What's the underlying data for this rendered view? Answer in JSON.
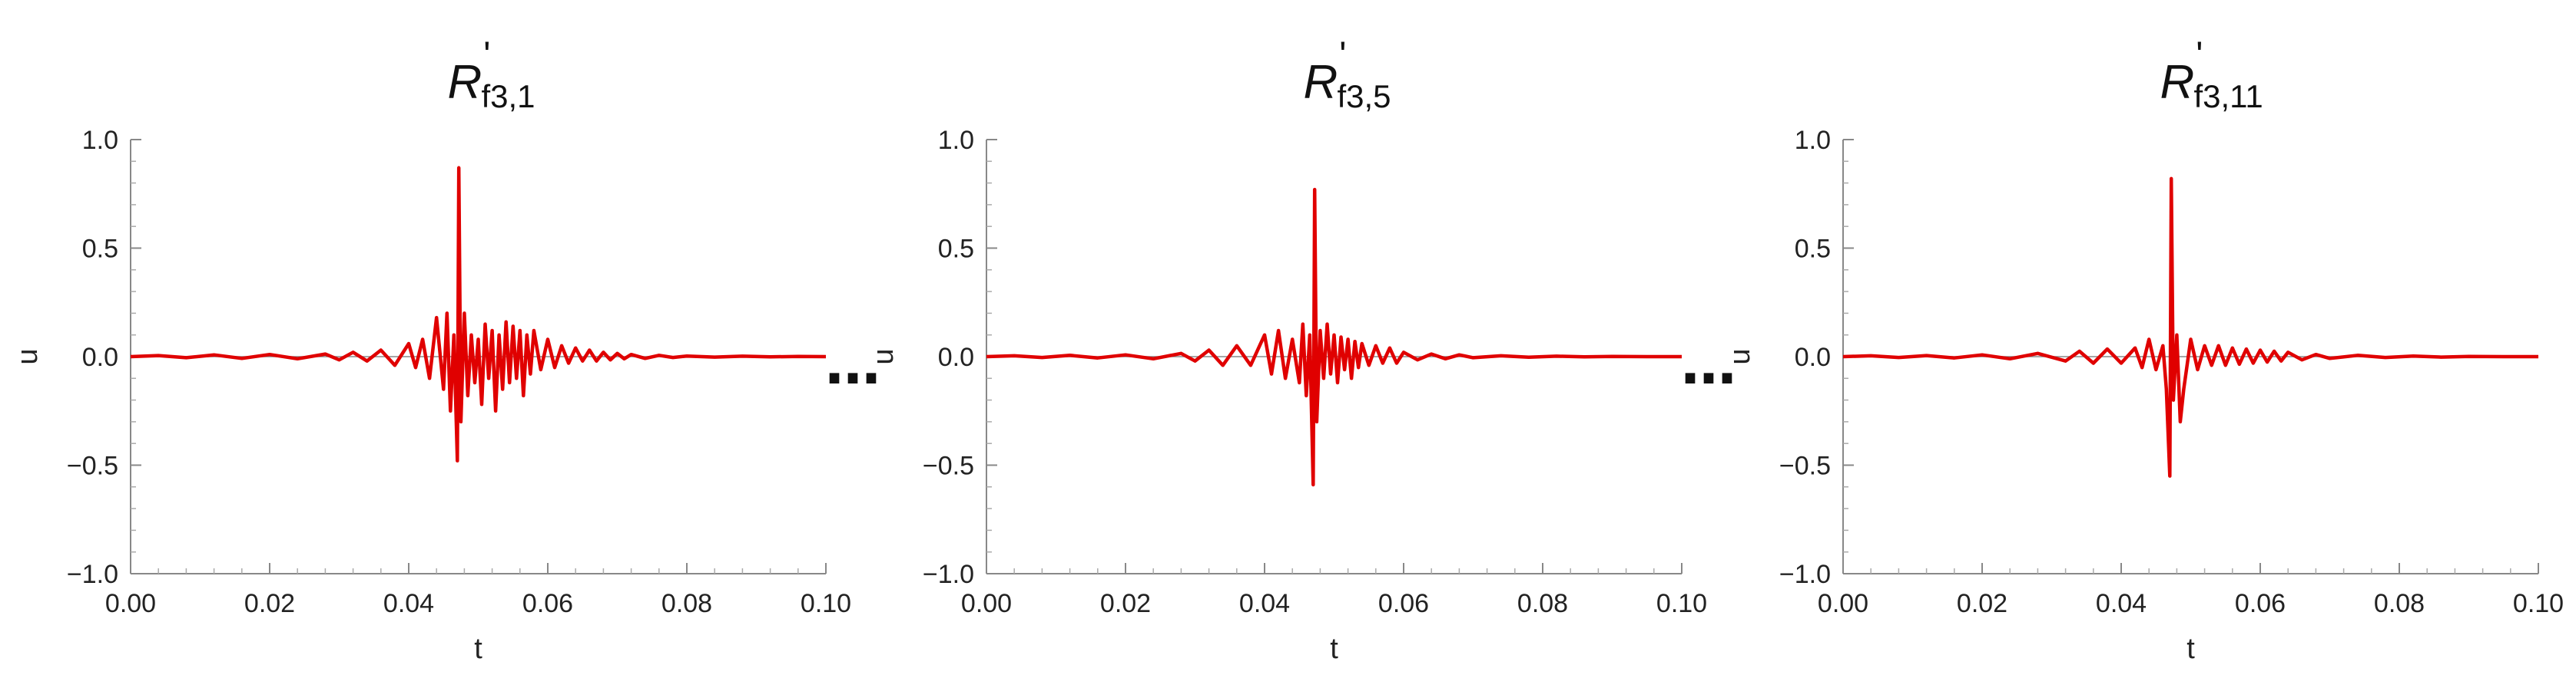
{
  "chart_data": [
    {
      "type": "line",
      "title_base": "R",
      "title_prime": "'",
      "title_sub": "f3,1",
      "xlabel": "t",
      "ylabel": "u",
      "xlim": [
        0.0,
        0.1
      ],
      "ylim": [
        -1.0,
        1.0
      ],
      "xticks": [
        "0.00",
        "0.02",
        "0.04",
        "0.06",
        "0.08",
        "0.10"
      ],
      "yticks": [
        "−1.0",
        "−0.5",
        "0.0",
        "0.5",
        "1.0"
      ],
      "grid": false,
      "series": [
        {
          "color": "#e00000",
          "x": [
            0.0,
            0.004,
            0.008,
            0.012,
            0.016,
            0.02,
            0.024,
            0.028,
            0.03,
            0.032,
            0.034,
            0.036,
            0.038,
            0.04,
            0.041,
            0.042,
            0.043,
            0.044,
            0.045,
            0.0455,
            0.046,
            0.0465,
            0.047,
            0.0472,
            0.0475,
            0.048,
            0.0485,
            0.049,
            0.0495,
            0.05,
            0.0505,
            0.051,
            0.0515,
            0.052,
            0.0525,
            0.053,
            0.0535,
            0.054,
            0.0545,
            0.055,
            0.0555,
            0.056,
            0.0565,
            0.057,
            0.0575,
            0.058,
            0.059,
            0.06,
            0.061,
            0.062,
            0.063,
            0.064,
            0.065,
            0.066,
            0.067,
            0.068,
            0.069,
            0.07,
            0.071,
            0.072,
            0.074,
            0.076,
            0.078,
            0.08,
            0.084,
            0.088,
            0.092,
            0.096,
            0.1
          ],
          "y": [
            0.0,
            0.005,
            -0.005,
            0.008,
            -0.008,
            0.01,
            -0.01,
            0.012,
            -0.015,
            0.02,
            -0.02,
            0.03,
            -0.04,
            0.06,
            -0.05,
            0.08,
            -0.1,
            0.18,
            -0.15,
            0.2,
            -0.25,
            0.1,
            -0.48,
            0.87,
            -0.3,
            0.2,
            -0.18,
            0.1,
            -0.12,
            0.08,
            -0.22,
            0.15,
            -0.1,
            0.12,
            -0.25,
            0.1,
            -0.15,
            0.16,
            -0.12,
            0.14,
            -0.1,
            0.12,
            -0.18,
            0.1,
            -0.08,
            0.12,
            -0.06,
            0.08,
            -0.05,
            0.05,
            -0.03,
            0.04,
            -0.02,
            0.03,
            -0.02,
            0.02,
            -0.015,
            0.015,
            -0.01,
            0.01,
            -0.008,
            0.006,
            -0.004,
            0.003,
            -0.002,
            0.002,
            -0.001,
            0.001,
            0.0
          ]
        }
      ]
    },
    {
      "type": "line",
      "title_base": "R",
      "title_prime": "'",
      "title_sub": "f3,5",
      "xlabel": "t",
      "ylabel": "u",
      "xlim": [
        0.0,
        0.1
      ],
      "ylim": [
        -1.0,
        1.0
      ],
      "xticks": [
        "0.00",
        "0.02",
        "0.04",
        "0.06",
        "0.08",
        "0.10"
      ],
      "yticks": [
        "−1.0",
        "−0.5",
        "0.0",
        "0.5",
        "1.0"
      ],
      "grid": false,
      "series": [
        {
          "color": "#e00000",
          "x": [
            0.0,
            0.004,
            0.008,
            0.012,
            0.016,
            0.02,
            0.024,
            0.028,
            0.03,
            0.032,
            0.034,
            0.036,
            0.038,
            0.04,
            0.041,
            0.042,
            0.043,
            0.044,
            0.045,
            0.0455,
            0.046,
            0.0465,
            0.047,
            0.0472,
            0.0475,
            0.048,
            0.0485,
            0.049,
            0.0495,
            0.05,
            0.0505,
            0.051,
            0.0515,
            0.052,
            0.0525,
            0.053,
            0.0535,
            0.054,
            0.055,
            0.056,
            0.057,
            0.058,
            0.059,
            0.06,
            0.062,
            0.064,
            0.066,
            0.068,
            0.07,
            0.074,
            0.078,
            0.082,
            0.086,
            0.09,
            0.095,
            0.1
          ],
          "y": [
            0.0,
            0.004,
            -0.004,
            0.006,
            -0.006,
            0.008,
            -0.01,
            0.015,
            -0.02,
            0.03,
            -0.04,
            0.05,
            -0.04,
            0.1,
            -0.08,
            0.12,
            -0.1,
            0.08,
            -0.12,
            0.15,
            -0.18,
            0.1,
            -0.59,
            0.77,
            -0.3,
            0.12,
            -0.1,
            0.15,
            -0.08,
            0.1,
            -0.12,
            0.09,
            -0.06,
            0.08,
            -0.1,
            0.07,
            -0.05,
            0.06,
            -0.04,
            0.05,
            -0.03,
            0.04,
            -0.03,
            0.02,
            -0.015,
            0.012,
            -0.01,
            0.008,
            -0.005,
            0.004,
            -0.003,
            0.002,
            -0.001,
            0.001,
            0.0,
            0.0
          ]
        }
      ]
    },
    {
      "type": "line",
      "title_base": "R",
      "title_prime": "'",
      "title_sub": "f3,11",
      "xlabel": "t",
      "ylabel": "u",
      "xlim": [
        0.0,
        0.1
      ],
      "ylim": [
        -1.0,
        1.0
      ],
      "xticks": [
        "0.00",
        "0.02",
        "0.04",
        "0.06",
        "0.08",
        "0.10"
      ],
      "yticks": [
        "−1.0",
        "−0.5",
        "0.0",
        "0.5",
        "1.0"
      ],
      "grid": false,
      "series": [
        {
          "color": "#e00000",
          "x": [
            0.0,
            0.004,
            0.008,
            0.012,
            0.016,
            0.02,
            0.024,
            0.028,
            0.032,
            0.034,
            0.036,
            0.038,
            0.04,
            0.042,
            0.043,
            0.044,
            0.045,
            0.046,
            0.0465,
            0.047,
            0.0472,
            0.0475,
            0.048,
            0.0485,
            0.049,
            0.05,
            0.051,
            0.052,
            0.053,
            0.054,
            0.055,
            0.056,
            0.057,
            0.058,
            0.059,
            0.06,
            0.061,
            0.062,
            0.063,
            0.064,
            0.066,
            0.068,
            0.07,
            0.074,
            0.078,
            0.082,
            0.086,
            0.09,
            0.095,
            0.1
          ],
          "y": [
            0.0,
            0.004,
            -0.004,
            0.005,
            -0.006,
            0.008,
            -0.01,
            0.015,
            -0.02,
            0.025,
            -0.03,
            0.035,
            -0.03,
            0.04,
            -0.05,
            0.08,
            -0.06,
            0.05,
            -0.15,
            -0.55,
            0.82,
            -0.2,
            0.1,
            -0.3,
            -0.15,
            0.08,
            -0.06,
            0.05,
            -0.04,
            0.05,
            -0.04,
            0.04,
            -0.035,
            0.035,
            -0.03,
            0.03,
            -0.025,
            0.025,
            -0.02,
            0.02,
            -0.015,
            0.01,
            -0.008,
            0.006,
            -0.004,
            0.003,
            -0.002,
            0.001,
            0.0,
            0.0
          ]
        }
      ]
    }
  ],
  "separators": [
    "…",
    "…"
  ]
}
